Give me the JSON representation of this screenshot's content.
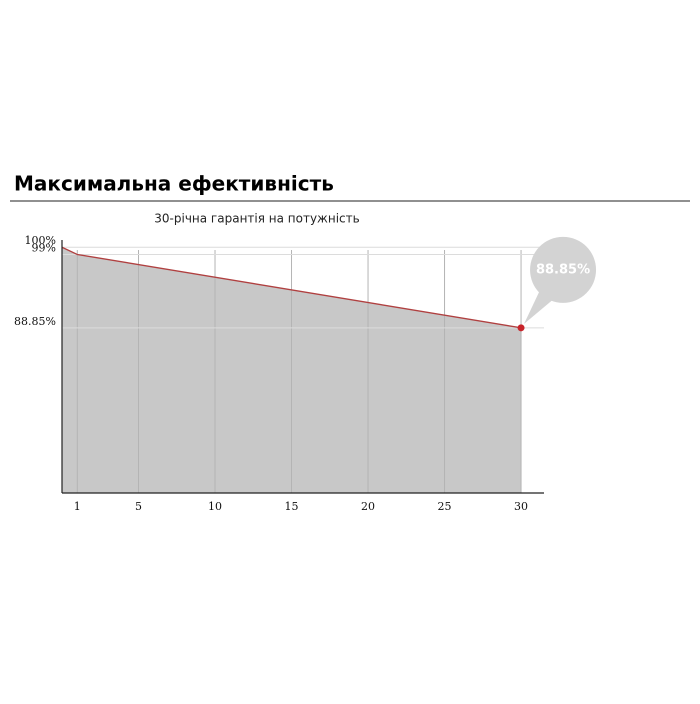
{
  "chart_data": {
    "type": "area",
    "title": "Максимальна ефективність",
    "subtitle": "30-річна гарантія на потужність",
    "x": [
      0,
      1,
      30
    ],
    "values": [
      100,
      99,
      88.85
    ],
    "value_labels": [
      null,
      null,
      "88.85%"
    ],
    "color": "#b04040",
    "fill": "#c8c8c8",
    "xlim": [
      0,
      31.5
    ],
    "xticks": [
      1,
      5,
      10,
      15,
      20,
      25,
      30
    ],
    "ylim": [
      66,
      101
    ],
    "yticks": [
      {
        "value": 100,
        "label": "100%"
      },
      {
        "value": 99,
        "label": "99%"
      },
      {
        "value": 88.85,
        "label": "88.85%"
      }
    ],
    "grid": true
  }
}
